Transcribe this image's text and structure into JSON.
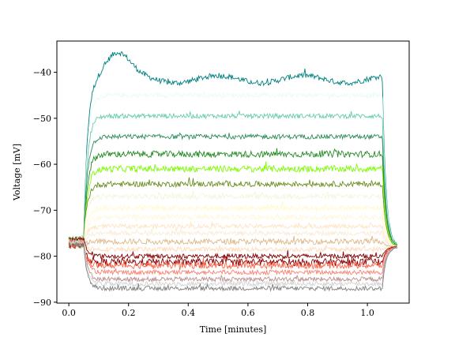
{
  "chart_data": {
    "type": "line",
    "title": "",
    "xlabel": "Time [minutes]",
    "ylabel": "Voltage [mV]",
    "xlim": [
      -0.04,
      1.14
    ],
    "ylim": [
      -90.2,
      -33.2
    ],
    "xticks": [
      0.0,
      0.2,
      0.4,
      0.6,
      0.8,
      1.0
    ],
    "xtick_labels": [
      "0.0",
      "0.2",
      "0.4",
      "0.6",
      "0.8",
      "1.0"
    ],
    "yticks": [
      -90,
      -80,
      -70,
      -60,
      -50,
      -40
    ],
    "ytick_labels": [
      "−90",
      "−80",
      "−70",
      "−60",
      "−50",
      "−40"
    ],
    "grid": false,
    "legend": "none",
    "stim_on": 0.05,
    "stim_off": 1.05,
    "baseline": -77,
    "end_time": 1.1,
    "series": [
      {
        "color": "#008080",
        "steady": -41.5,
        "peak": -36.0,
        "noise": 0.6
      },
      {
        "color": "#e8fbfb",
        "steady": -45.0,
        "noise": 0.5
      },
      {
        "color": "#66cdaa",
        "steady": -49.5,
        "noise": 0.5
      },
      {
        "color": "#2e8b57",
        "steady": -54.0,
        "noise": 0.5
      },
      {
        "color": "#228b22",
        "steady": -57.8,
        "noise": 0.7
      },
      {
        "color": "#7cfc00",
        "steady": -61.0,
        "noise": 0.7
      },
      {
        "color": "#6b8e23",
        "steady": -64.3,
        "noise": 0.6
      },
      {
        "color": "#f5f5dc",
        "steady": -67.0,
        "noise": 0.6
      },
      {
        "color": "#fffacd",
        "steady": -69.5,
        "noise": 0.6
      },
      {
        "color": "#fff8dc",
        "steady": -71.5,
        "noise": 0.6
      },
      {
        "color": "#ffe4c4",
        "steady": -73.5,
        "noise": 0.5
      },
      {
        "color": "#faebd7",
        "steady": -75.0,
        "noise": 0.5
      },
      {
        "color": "#deb887",
        "steady": -76.8,
        "noise": 0.6
      },
      {
        "color": "#ffdab9",
        "steady": -78.5,
        "noise": 0.5
      },
      {
        "color": "#800000",
        "steady": -80.0,
        "noise": 0.5
      },
      {
        "color": "#8b0000",
        "steady": -81.3,
        "noise": 0.8
      },
      {
        "color": "#ff6347",
        "steady": -82.0,
        "noise": 0.7
      },
      {
        "color": "#fa8072",
        "steady": -83.5,
        "noise": 0.5
      },
      {
        "color": "#bc8f8f",
        "steady": -85.0,
        "noise": 0.5
      },
      {
        "color": "#d3d3d3",
        "steady": -86.0,
        "noise": 0.5
      },
      {
        "color": "#808080",
        "steady": -87.0,
        "noise": 0.5
      }
    ]
  }
}
